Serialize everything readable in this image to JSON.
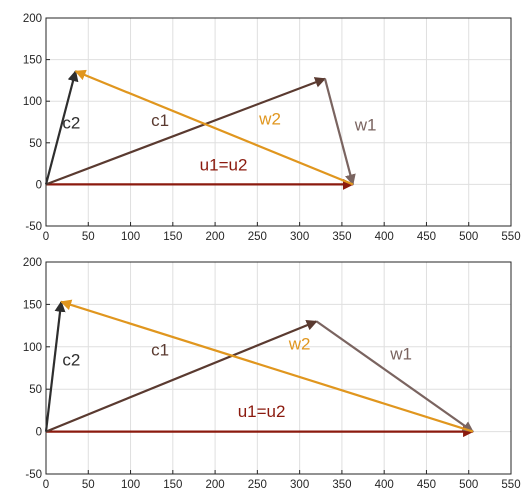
{
  "chart_data": [
    {
      "type": "line",
      "title": "",
      "xlabel": "",
      "ylabel": "",
      "xlim": [
        0,
        550
      ],
      "ylim": [
        -50,
        200
      ],
      "xticks": [
        "0",
        "50",
        "100",
        "150",
        "200",
        "250",
        "300",
        "350",
        "400",
        "450",
        "500",
        "550"
      ],
      "yticks": [
        "-50",
        "0",
        "50",
        "100",
        "150",
        "200"
      ],
      "grid": true,
      "vectors": [
        {
          "label": "u1=u2",
          "from": [
            0,
            0
          ],
          "to": [
            363,
            0
          ],
          "color": "#8b1a0e",
          "label_at": [
            210,
            17
          ]
        },
        {
          "label": "c1",
          "from": [
            0,
            0
          ],
          "to": [
            330,
            127
          ],
          "color": "#5a3a30",
          "label_at": [
            135,
            70
          ]
        },
        {
          "label": "w1",
          "from": [
            330,
            127
          ],
          "to": [
            363,
            0
          ],
          "color": "#7a6460",
          "label_at": [
            378,
            65
          ]
        },
        {
          "label": "c2",
          "from": [
            0,
            0
          ],
          "to": [
            35,
            136
          ],
          "color": "#2e2e2e",
          "label_at": [
            30,
            67
          ]
        },
        {
          "label": "w2",
          "from": [
            363,
            0
          ],
          "to": [
            35,
            136
          ],
          "color": "#e0961e",
          "label_at": [
            265,
            72
          ]
        }
      ]
    },
    {
      "type": "line",
      "title": "",
      "xlabel": "",
      "ylabel": "",
      "xlim": [
        0,
        550
      ],
      "ylim": [
        -50,
        200
      ],
      "xticks": [
        "0",
        "50",
        "100",
        "150",
        "200",
        "250",
        "300",
        "350",
        "400",
        "450",
        "500",
        "550"
      ],
      "yticks": [
        "-50",
        "0",
        "50",
        "100",
        "150",
        "200"
      ],
      "grid": true,
      "vectors": [
        {
          "label": "u1=u2",
          "from": [
            0,
            0
          ],
          "to": [
            505,
            0
          ],
          "color": "#8b1a0e",
          "label_at": [
            255,
            17
          ]
        },
        {
          "label": "c1",
          "from": [
            0,
            0
          ],
          "to": [
            320,
            130
          ],
          "color": "#5a3a30",
          "label_at": [
            135,
            90
          ]
        },
        {
          "label": "w1",
          "from": [
            320,
            130
          ],
          "to": [
            505,
            0
          ],
          "color": "#7a6460",
          "label_at": [
            420,
            85
          ]
        },
        {
          "label": "c2",
          "from": [
            0,
            0
          ],
          "to": [
            18,
            153
          ],
          "color": "#2e2e2e",
          "label_at": [
            30,
            78
          ]
        },
        {
          "label": "w2",
          "from": [
            505,
            0
          ],
          "to": [
            18,
            153
          ],
          "color": "#e0961e",
          "label_at": [
            300,
            97
          ]
        }
      ]
    }
  ]
}
